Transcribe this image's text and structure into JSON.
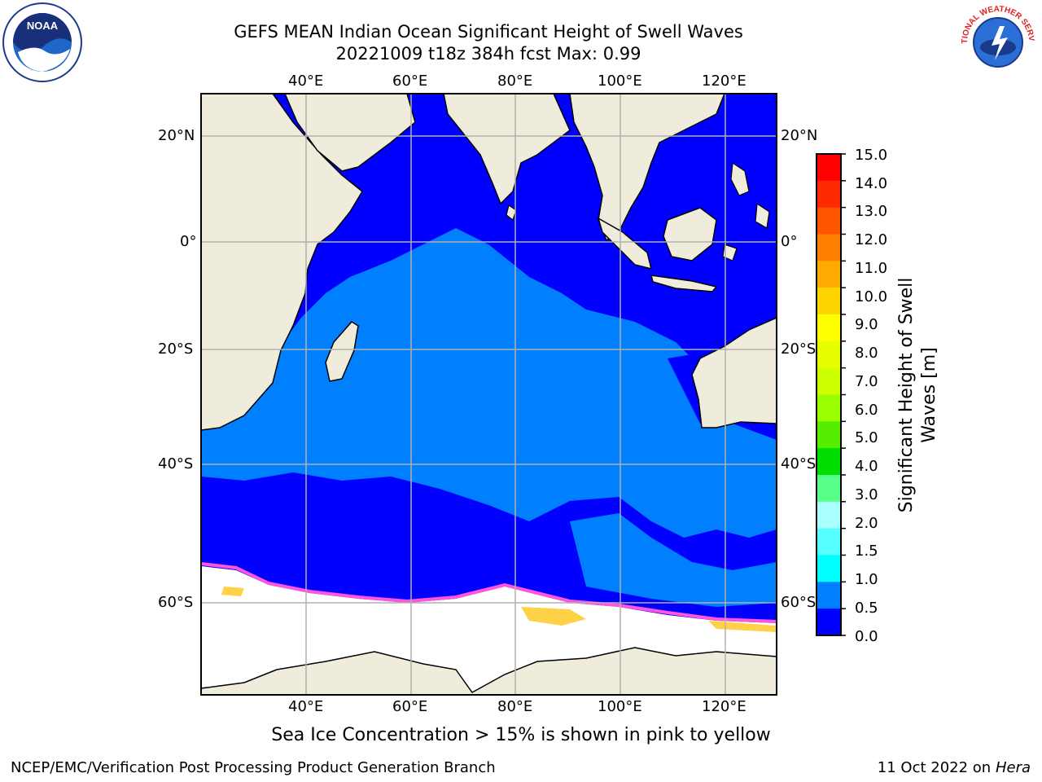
{
  "header": {
    "title_line1": "GEFS MEAN Indian Ocean Significant Height of Swell Waves",
    "title_line2": "20221009 t18z 384h fcst   Max: 0.99"
  },
  "logos": {
    "left": {
      "name": "noaa-logo",
      "text": "NOAA"
    },
    "right": {
      "name": "nws-logo",
      "text": "NATIONAL WEATHER SERVICE"
    }
  },
  "axes": {
    "lon_labels": [
      "40°E",
      "60°E",
      "80°E",
      "100°E",
      "120°E"
    ],
    "lat_labels": [
      "20°N",
      "0°",
      "20°S",
      "40°S",
      "60°S"
    ],
    "lon_range": [
      20,
      130
    ],
    "lat_range": [
      -78,
      27
    ],
    "grid": true
  },
  "colorbar": {
    "title_line1": "Significant Height of Swell",
    "title_line2": "Waves [m]",
    "ticks": [
      "15.0",
      "14.0",
      "13.0",
      "12.0",
      "11.0",
      "10.0",
      "9.0",
      "8.0",
      "7.0",
      "6.0",
      "5.0",
      "4.0",
      "3.0",
      "2.0",
      "1.5",
      "1.0",
      "0.5",
      "0.0"
    ],
    "colors": [
      "#ff0000",
      "#ff2a00",
      "#ff5500",
      "#ff8000",
      "#ffaa00",
      "#ffd500",
      "#ffff00",
      "#e5ff00",
      "#ccff00",
      "#99ff00",
      "#55ee00",
      "#00dd00",
      "#55ff88",
      "#aaffff",
      "#55ffff",
      "#00ffff",
      "#0080ff",
      "#0000ff"
    ]
  },
  "legend_note": "Sea Ice Concentration > 15% is shown in pink to yellow",
  "footer": {
    "left": "NCEP/EMC/Verification Post Processing Product Generation Branch",
    "right_date": "11 Oct 2022 on ",
    "right_host": "Hera"
  },
  "colors": {
    "land": "#efecdc",
    "swell_low": "#0000ff",
    "swell_mid": "#0080ff",
    "ice": "#ffffff",
    "ice_edge_pink": "#ff55dd",
    "ice_edge_yellow": "#ffcc33",
    "grid": "#b0b0b0"
  }
}
